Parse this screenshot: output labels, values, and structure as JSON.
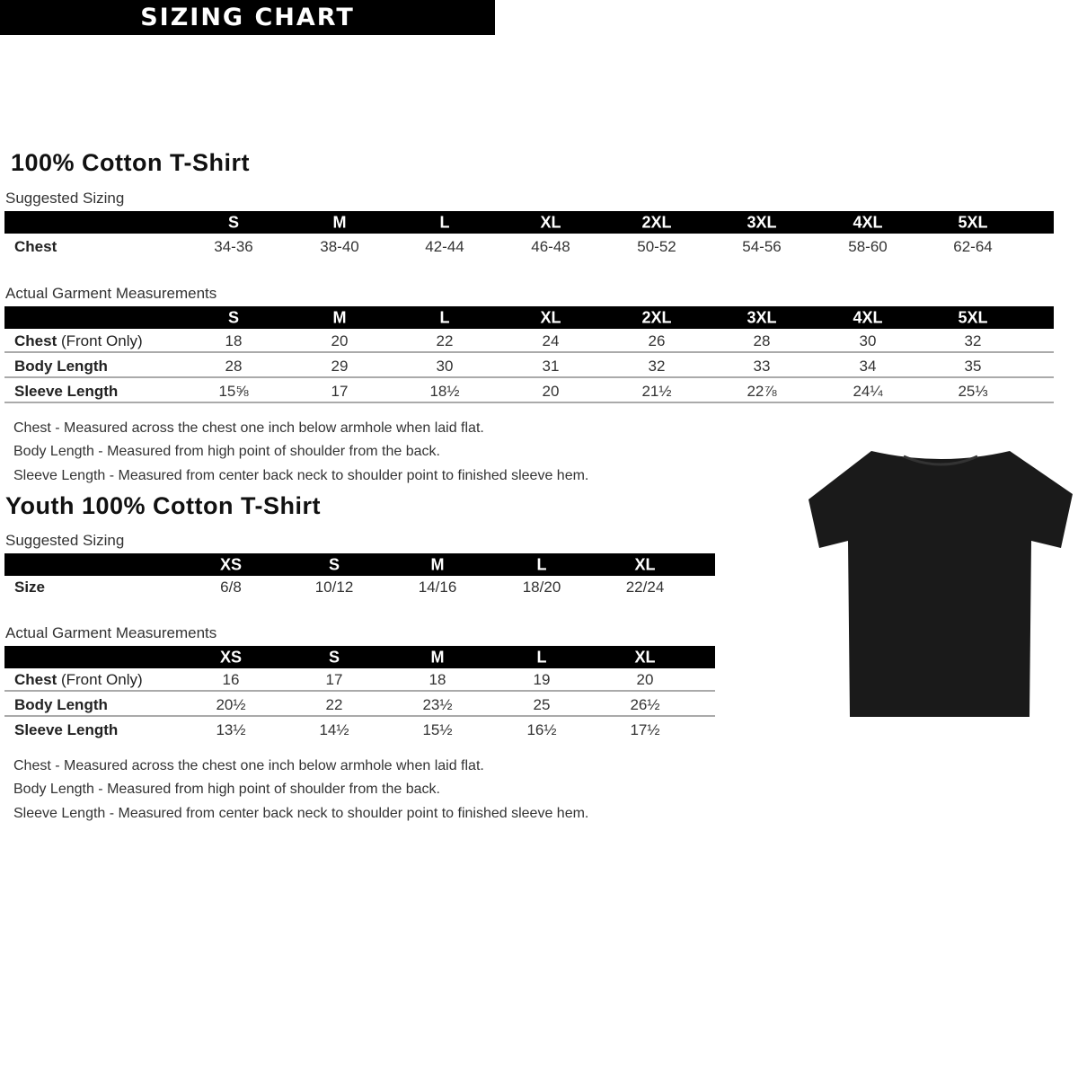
{
  "adult": {
    "title": "100% Cotton T-Shirt",
    "banner": "SIZING CHART",
    "suggested_label": "Suggested Sizing",
    "sizes": [
      "S",
      "M",
      "L",
      "XL",
      "2XL",
      "3XL",
      "4XL",
      "5XL"
    ],
    "suggested_rows": [
      {
        "label": "Chest",
        "values": [
          "34-36",
          "38-40",
          "42-44",
          "46-48",
          "50-52",
          "54-56",
          "58-60",
          "62-64"
        ]
      }
    ],
    "actual_label": "Actual Garment Measurements",
    "actual_rows": [
      {
        "label": "Chest",
        "label_note": " (Front Only)",
        "values": [
          "18",
          "20",
          "22",
          "24",
          "26",
          "28",
          "30",
          "32"
        ]
      },
      {
        "label": "Body Length",
        "values": [
          "28",
          "29",
          "30",
          "31",
          "32",
          "33",
          "34",
          "35"
        ]
      },
      {
        "label": "Sleeve Length",
        "values": [
          "15⅝",
          "17",
          "18½",
          "20",
          "21½",
          "22⅞",
          "24¼",
          "25⅓"
        ]
      }
    ],
    "notes": [
      "Chest - Measured across the chest one inch below armhole when laid flat.",
      "Body Length - Measured from high point of shoulder from the back.",
      "Sleeve Length - Measured from center back neck to shoulder point to finished sleeve hem."
    ]
  },
  "youth": {
    "title": "Youth 100% Cotton T-Shirt",
    "suggested_label": "Suggested Sizing",
    "sizes": [
      "XS",
      "S",
      "M",
      "L",
      "XL"
    ],
    "suggested_rows": [
      {
        "label": "Size",
        "values": [
          "6/8",
          "10/12",
          "14/16",
          "18/20",
          "22/24"
        ]
      }
    ],
    "actual_label": "Actual Garment Measurements",
    "actual_rows": [
      {
        "label": "Chest",
        "label_note": " (Front Only)",
        "values": [
          "16",
          "17",
          "18",
          "19",
          "20"
        ]
      },
      {
        "label": "Body Length",
        "values": [
          "20½",
          "22",
          "23½",
          "25",
          "26½"
        ]
      },
      {
        "label": "Sleeve Length",
        "values": [
          "13½",
          "14½",
          "15½",
          "16½",
          "17½"
        ]
      }
    ],
    "notes": [
      "Chest - Measured across the chest one inch below armhole when laid flat.",
      "Body Length - Measured from high point of shoulder from the back.",
      "Sleeve Length - Measured from center back neck to shoulder point to finished sleeve hem."
    ]
  },
  "colors": {
    "header_bar": "#000000",
    "shirt": "#1a1a1a",
    "row_divider": "#aaaaaa"
  }
}
